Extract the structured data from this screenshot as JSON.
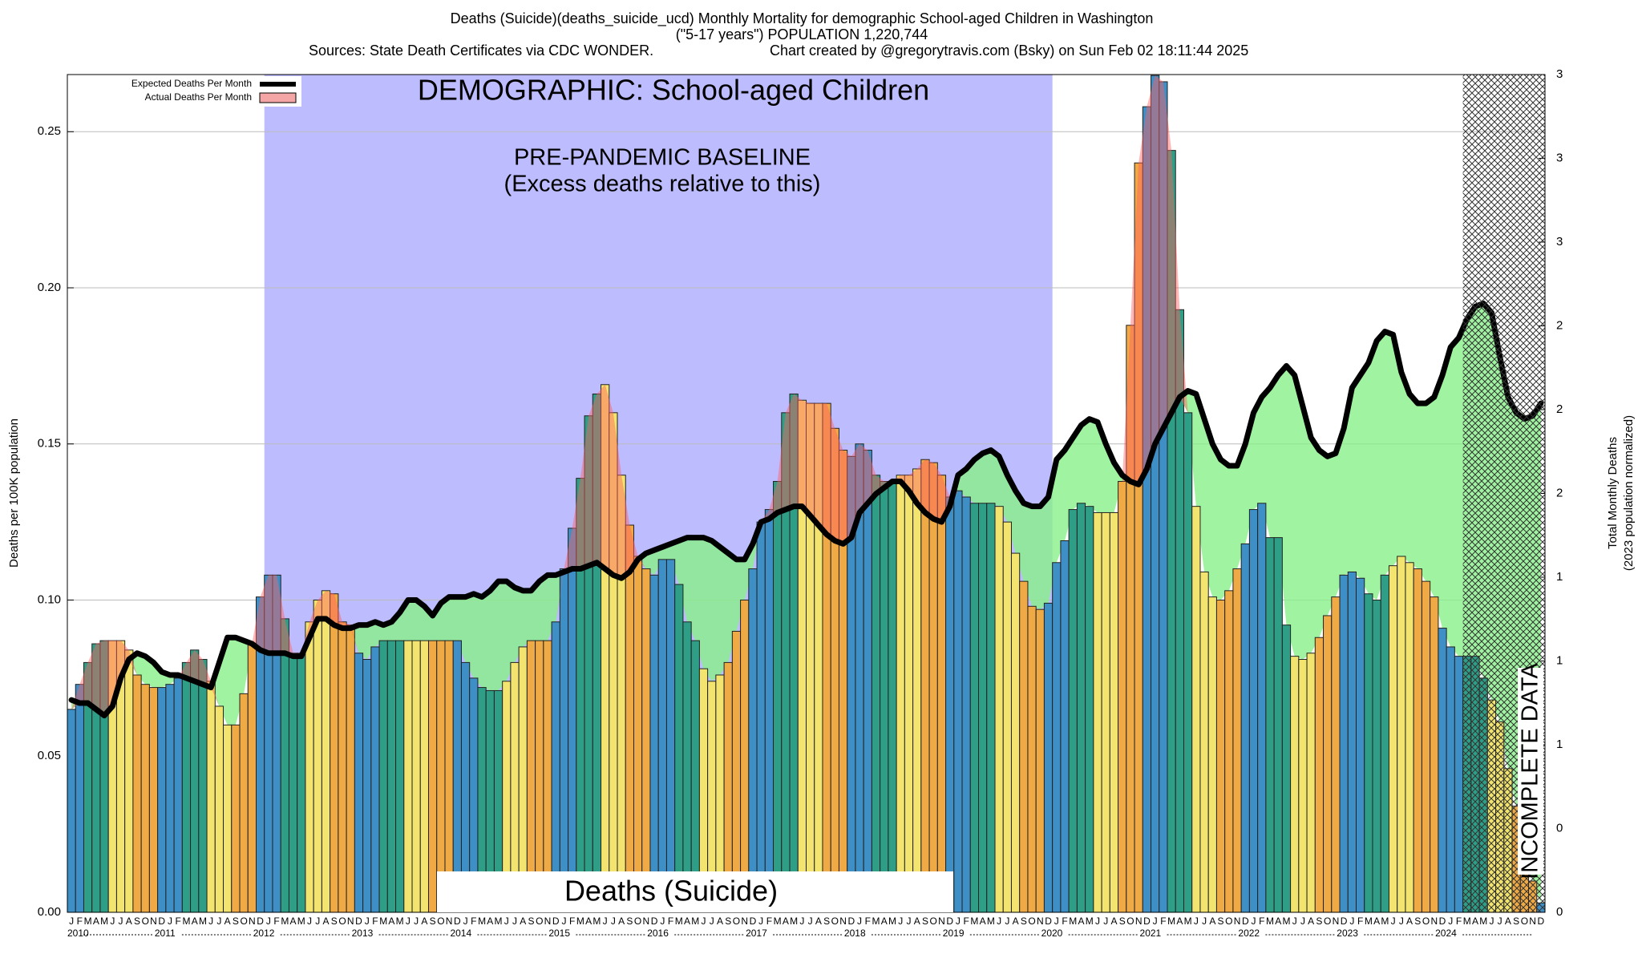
{
  "chart_data": {
    "type": "bar_line",
    "title": "Deaths (Suicide)(deaths_suicide_ucd) Monthly Mortality for demographic School-aged Children in Washington",
    "subtitle": "(\"5-17 years\") POPULATION 1,220,744",
    "sources": "Sources: State Death Certificates via CDC WONDER.",
    "credit": "Chart created by @gregorytravis.com (Bsky) on Sun Feb 02 18:11:44 2025",
    "y_label": "Deaths per 100K population",
    "y2_label": [
      "Total Monthly Deaths",
      "(2023 population normalized)"
    ],
    "annotations": {
      "demographic": "DEMOGRAPHIC: School-aged Children",
      "baseline": "PRE-PANDEMIC BASELINE",
      "baseline_note": "(Excess deaths relative to this)",
      "cause": "Deaths (Suicide)",
      "incomplete": "INCOMPLETE DATA"
    },
    "baseline_region": {
      "start": 24,
      "end": 120,
      "color": "#bcbcff"
    },
    "incomplete_region": {
      "start": 170,
      "end": 180
    },
    "years": [
      "2010",
      "2011",
      "2012",
      "2013",
      "2014",
      "2015",
      "2016",
      "2017",
      "2018",
      "2019",
      "2020",
      "2021",
      "2022",
      "2023",
      "2024"
    ],
    "categories": [
      "J",
      "F",
      "M",
      "A",
      "M",
      "J",
      "J",
      "A",
      "S",
      "O",
      "N",
      "D",
      "J",
      "F",
      "M",
      "A",
      "M",
      "J",
      "J",
      "A",
      "S",
      "O",
      "N",
      "D",
      "J",
      "F",
      "M",
      "A",
      "M",
      "J",
      "J",
      "A",
      "S",
      "O",
      "N",
      "D",
      "J",
      "F",
      "M",
      "A",
      "M",
      "J",
      "J",
      "A",
      "S",
      "O",
      "N",
      "D",
      "J",
      "F",
      "M",
      "A",
      "M",
      "J",
      "J",
      "A",
      "S",
      "O",
      "N",
      "D",
      "J",
      "F",
      "M",
      "A",
      "M",
      "J",
      "J",
      "A",
      "S",
      "O",
      "N",
      "D",
      "J",
      "F",
      "M",
      "A",
      "M",
      "J",
      "J",
      "A",
      "S",
      "O",
      "N",
      "D",
      "J",
      "F",
      "M",
      "A",
      "M",
      "J",
      "J",
      "A",
      "S",
      "O",
      "N",
      "D",
      "J",
      "F",
      "M",
      "A",
      "M",
      "J",
      "J",
      "A",
      "S",
      "O",
      "N",
      "D",
      "J",
      "F",
      "M",
      "A",
      "M",
      "J",
      "J",
      "A",
      "S",
      "O",
      "N",
      "D",
      "J",
      "F",
      "M",
      "A",
      "M",
      "J",
      "J",
      "A",
      "S",
      "O",
      "N",
      "D",
      "J",
      "F",
      "M",
      "A",
      "M",
      "J",
      "J",
      "A",
      "S",
      "O",
      "N",
      "D",
      "J",
      "F",
      "M",
      "A",
      "M",
      "J",
      "J",
      "A",
      "S",
      "O",
      "N",
      "D",
      "J",
      "F",
      "M",
      "A",
      "M",
      "J",
      "J",
      "A",
      "S",
      "O",
      "N",
      "D",
      "J",
      "F",
      "M",
      "A",
      "M",
      "J",
      "J",
      "A",
      "S",
      "O",
      "N",
      "D"
    ],
    "bar_colors_by_month": [
      "#3d8fc6",
      "#3d8fc6",
      "#2f9e86",
      "#2f9e86",
      "#2f9e86",
      "#f2e46e",
      "#f2e46e",
      "#f2e46e",
      "#f0aa45",
      "#f0aa45",
      "#f0aa45",
      "#3d8fc6"
    ],
    "deficit_color": "#88f088",
    "excess_color": "#ff6060",
    "series": [
      {
        "name": "Expected Deaths Per Month",
        "color": "#000000",
        "values": [
          0.068,
          0.067,
          0.067,
          0.065,
          0.063,
          0.066,
          0.075,
          0.081,
          0.083,
          0.082,
          0.08,
          0.077,
          0.076,
          0.076,
          0.075,
          0.074,
          0.073,
          0.072,
          0.08,
          0.088,
          0.088,
          0.087,
          0.086,
          0.084,
          0.083,
          0.083,
          0.083,
          0.082,
          0.082,
          0.088,
          0.094,
          0.094,
          0.092,
          0.091,
          0.091,
          0.092,
          0.092,
          0.093,
          0.092,
          0.093,
          0.096,
          0.1,
          0.1,
          0.098,
          0.095,
          0.099,
          0.101,
          0.101,
          0.101,
          0.102,
          0.101,
          0.103,
          0.106,
          0.106,
          0.104,
          0.103,
          0.103,
          0.106,
          0.108,
          0.108,
          0.109,
          0.11,
          0.11,
          0.111,
          0.112,
          0.11,
          0.108,
          0.107,
          0.109,
          0.113,
          0.115,
          0.116,
          0.117,
          0.118,
          0.119,
          0.12,
          0.12,
          0.12,
          0.119,
          0.117,
          0.115,
          0.113,
          0.113,
          0.118,
          0.125,
          0.126,
          0.128,
          0.129,
          0.13,
          0.13,
          0.127,
          0.124,
          0.121,
          0.119,
          0.118,
          0.12,
          0.128,
          0.131,
          0.134,
          0.136,
          0.138,
          0.138,
          0.135,
          0.131,
          0.128,
          0.126,
          0.125,
          0.13,
          0.14,
          0.142,
          0.145,
          0.147,
          0.148,
          0.146,
          0.14,
          0.135,
          0.131,
          0.13,
          0.13,
          0.133,
          0.145,
          0.148,
          0.152,
          0.156,
          0.158,
          0.157,
          0.15,
          0.144,
          0.14,
          0.138,
          0.137,
          0.142,
          0.15,
          0.155,
          0.16,
          0.165,
          0.167,
          0.166,
          0.158,
          0.15,
          0.145,
          0.143,
          0.143,
          0.15,
          0.16,
          0.165,
          0.168,
          0.172,
          0.175,
          0.172,
          0.162,
          0.152,
          0.148,
          0.146,
          0.147,
          0.155,
          0.168,
          0.172,
          0.176,
          0.183,
          0.186,
          0.185,
          0.173,
          0.166,
          0.163,
          0.163,
          0.165,
          0.172,
          0.181,
          0.184,
          0.19,
          0.194,
          0.195,
          0.192,
          0.178,
          0.165,
          0.16,
          0.158,
          0.159,
          0.163
        ]
      },
      {
        "name": "Actual Deaths Per Month",
        "color": "#f4a6a6",
        "values": [
          0.065,
          0.073,
          0.08,
          0.086,
          0.087,
          0.087,
          0.087,
          0.084,
          0.076,
          0.073,
          0.072,
          0.072,
          0.073,
          0.075,
          0.08,
          0.084,
          0.081,
          0.074,
          0.066,
          0.06,
          0.06,
          0.07,
          0.086,
          0.101,
          0.108,
          0.108,
          0.094,
          0.083,
          0.083,
          0.093,
          0.1,
          0.103,
          0.102,
          0.093,
          0.092,
          0.083,
          0.081,
          0.085,
          0.087,
          0.087,
          0.087,
          0.087,
          0.087,
          0.087,
          0.087,
          0.087,
          0.087,
          0.087,
          0.08,
          0.075,
          0.072,
          0.071,
          0.071,
          0.074,
          0.08,
          0.085,
          0.087,
          0.087,
          0.087,
          0.093,
          0.11,
          0.123,
          0.139,
          0.159,
          0.166,
          0.169,
          0.16,
          0.14,
          0.124,
          0.114,
          0.11,
          0.108,
          0.113,
          0.113,
          0.105,
          0.093,
          0.087,
          0.078,
          0.074,
          0.076,
          0.08,
          0.09,
          0.1,
          0.11,
          0.125,
          0.129,
          0.138,
          0.16,
          0.166,
          0.164,
          0.163,
          0.163,
          0.163,
          0.155,
          0.148,
          0.146,
          0.15,
          0.148,
          0.14,
          0.138,
          0.138,
          0.14,
          0.14,
          0.142,
          0.145,
          0.144,
          0.14,
          0.133,
          0.135,
          0.133,
          0.131,
          0.131,
          0.131,
          0.13,
          0.125,
          0.115,
          0.106,
          0.098,
          0.097,
          0.099,
          0.112,
          0.119,
          0.129,
          0.131,
          0.13,
          0.128,
          0.128,
          0.128,
          0.138,
          0.188,
          0.24,
          0.258,
          0.268,
          0.266,
          0.244,
          0.193,
          0.16,
          0.13,
          0.109,
          0.101,
          0.1,
          0.103,
          0.11,
          0.118,
          0.129,
          0.131,
          0.12,
          0.12,
          0.092,
          0.082,
          0.081,
          0.083,
          0.088,
          0.095,
          0.101,
          0.108,
          0.109,
          0.107,
          0.102,
          0.1,
          0.108,
          0.111,
          0.114,
          0.112,
          0.11,
          0.106,
          0.101,
          0.091,
          0.085,
          0.082,
          0.082,
          0.082,
          0.075,
          0.068,
          0.061,
          0.046,
          0.034,
          0.022,
          0.01,
          0.003
        ]
      }
    ],
    "ylim": [
      0,
      0.2683
    ],
    "yticks": [
      {
        "value": 0,
        "label": "0.00"
      },
      0.05,
      {
        "value": 0.1,
        "label": "0.10"
      },
      0.15,
      {
        "value": 0.2,
        "label": "0.20"
      },
      0.25
    ],
    "y2lim": [
      0,
      3.275
    ],
    "y2ticks": [
      {
        "value": 0,
        "label": "0"
      },
      {
        "value": 0.3275,
        "label": "0"
      },
      {
        "value": 0.655,
        "label": "1"
      },
      {
        "value": 0.9825,
        "label": "1"
      },
      {
        "value": 1.31,
        "label": "1"
      },
      {
        "value": 1.6375,
        "label": "2"
      },
      {
        "value": 1.965,
        "label": "2"
      },
      {
        "value": 2.2925,
        "label": "2"
      },
      {
        "value": 2.62,
        "label": "3"
      },
      {
        "value": 2.9475,
        "label": "3"
      },
      {
        "value": 3.275,
        "label": "3"
      }
    ],
    "grid": true,
    "legend": "top-left"
  }
}
